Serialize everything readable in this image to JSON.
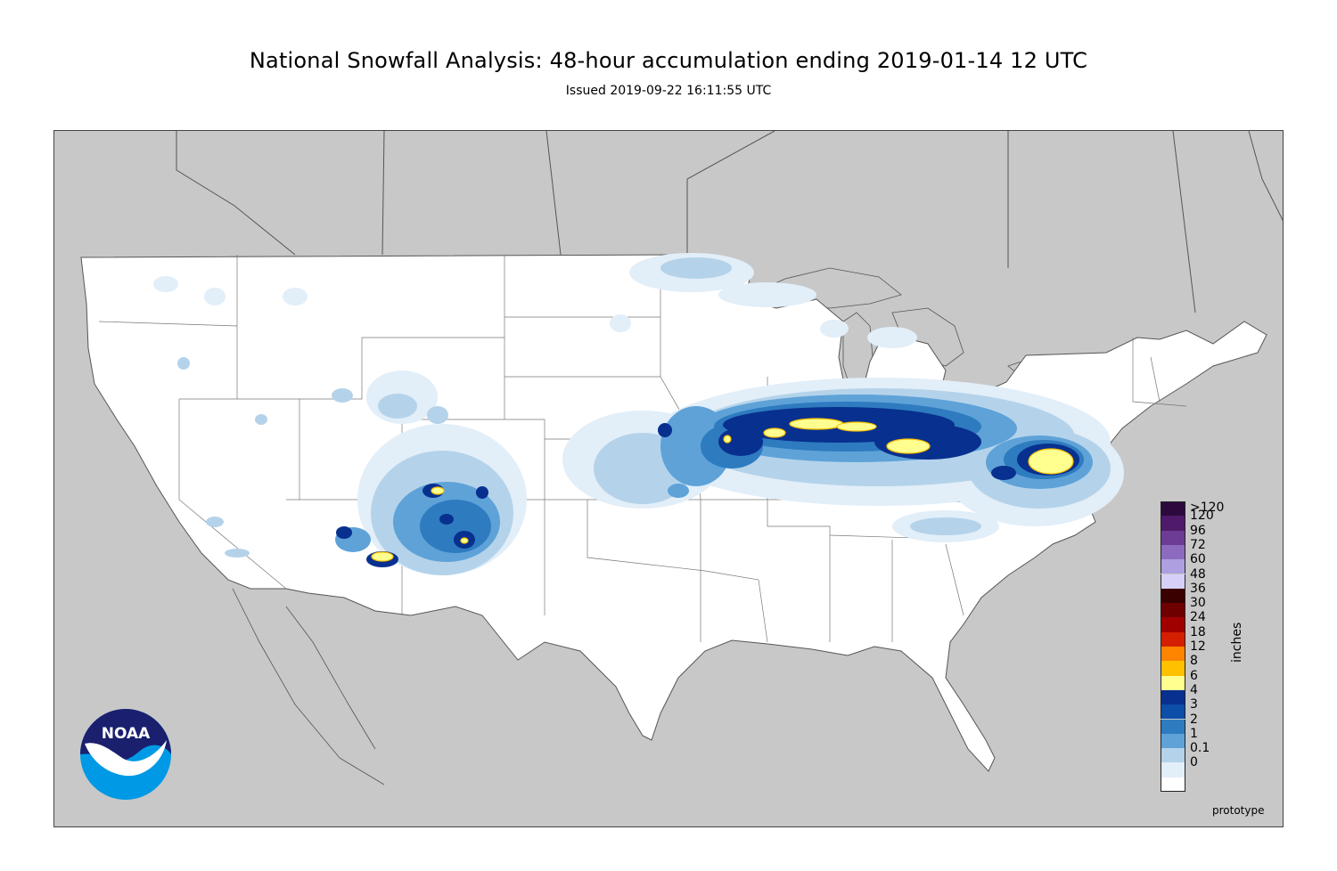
{
  "title": "National Snowfall Analysis: 48-hour accumulation ending 2019-01-14 12 UTC",
  "subtitle": "Issued 2019-09-22 16:11:55 UTC",
  "legend": {
    "units": "inches",
    "labels": [
      ">120",
      "120",
      "96",
      "72",
      "60",
      "48",
      "36",
      "30",
      "24",
      "18",
      "12",
      "8",
      "6",
      "4",
      "3",
      "2",
      "1",
      "0.1",
      "0"
    ],
    "colors": [
      "#2d0a3d",
      "#4f1a69",
      "#6d3c95",
      "#8c6bbf",
      "#aea0e0",
      "#d6d0f8",
      "#3a0000",
      "#6e0000",
      "#a10000",
      "#d42000",
      "#ff8400",
      "#ffc000",
      "#ffff90",
      "#08308f",
      "#0c4ea8",
      "#2e7bc0",
      "#5ea2d8",
      "#b4d3ea",
      "#e2eef8"
    ],
    "zero_color": "#ffffff"
  },
  "footer": {
    "note": "prototype"
  },
  "logo": {
    "text": "NOAA",
    "name": "noaa-logo"
  },
  "colors": {
    "background_land": "#c8c8c8",
    "conus": "#ffffff",
    "boundary": "#555555"
  }
}
